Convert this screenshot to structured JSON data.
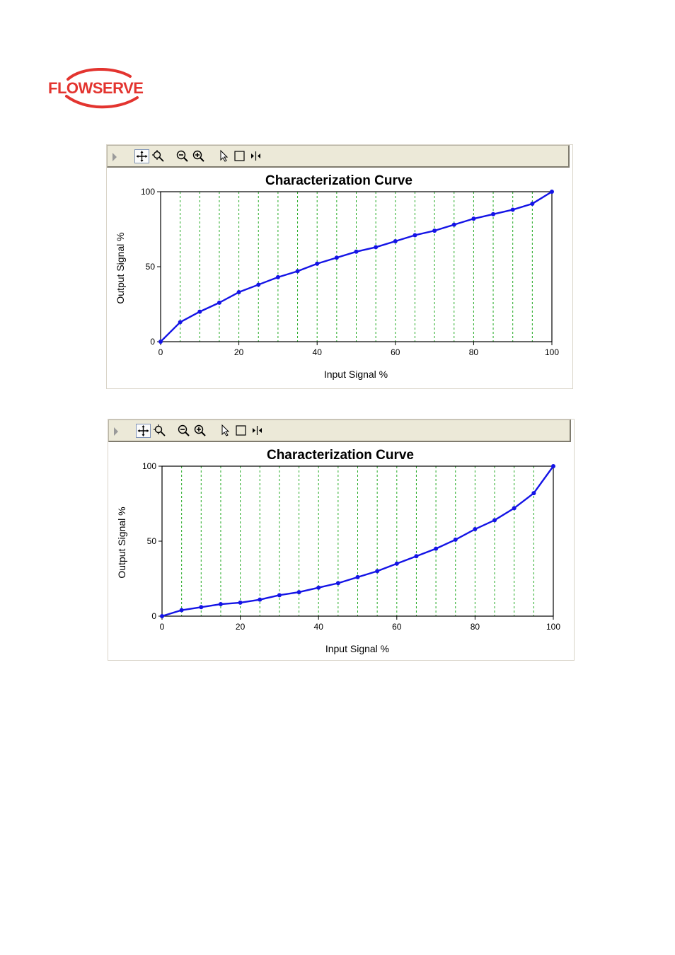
{
  "brand": {
    "logo_text": "FLOWSERVE",
    "logo_color": "#e3342f"
  },
  "toolbar": {
    "icons": [
      "expand-arrow-icon",
      "pan-icon",
      "zoom-area-icon",
      "zoom-out-icon",
      "zoom-in-icon",
      "pointer-icon",
      "selection-box-icon",
      "cursor-split-icon"
    ]
  },
  "colors": {
    "curve": "#1414e6",
    "grid": "#22aa22",
    "toolbar_bg": "#ece9d8"
  },
  "chart_data": [
    {
      "type": "line",
      "title": "Characterization Curve",
      "xlabel": "Input Signal %",
      "ylabel": "Output Signal %",
      "xlim": [
        0,
        100
      ],
      "ylim": [
        0,
        100
      ],
      "xticks": [
        0,
        20,
        40,
        60,
        80,
        100
      ],
      "yticks": [
        0,
        50,
        100
      ],
      "grid": "vertical dashed every 5",
      "legend": "none",
      "series": [
        {
          "x": [
            0,
            5,
            10,
            15,
            20,
            25,
            30,
            35,
            40,
            45,
            50,
            55,
            60,
            65,
            70,
            75,
            80,
            85,
            90,
            95,
            100
          ],
          "values": [
            0,
            13,
            20,
            26,
            33,
            38,
            43,
            47,
            52,
            56,
            60,
            63,
            67,
            71,
            74,
            78,
            82,
            85,
            88,
            92,
            100
          ]
        }
      ]
    },
    {
      "type": "line",
      "title": "Characterization Curve",
      "xlabel": "Input Signal %",
      "ylabel": "Output Signal %",
      "xlim": [
        0,
        100
      ],
      "ylim": [
        0,
        100
      ],
      "xticks": [
        0,
        20,
        40,
        60,
        80,
        100
      ],
      "yticks": [
        0,
        50,
        100
      ],
      "grid": "vertical dashed every 5",
      "legend": "none",
      "series": [
        {
          "x": [
            0,
            5,
            10,
            15,
            20,
            25,
            30,
            35,
            40,
            45,
            50,
            55,
            60,
            65,
            70,
            75,
            80,
            85,
            90,
            95,
            100
          ],
          "values": [
            0,
            4,
            6,
            8,
            9,
            11,
            14,
            16,
            19,
            22,
            26,
            30,
            35,
            40,
            45,
            51,
            58,
            64,
            72,
            82,
            100
          ]
        }
      ]
    }
  ]
}
